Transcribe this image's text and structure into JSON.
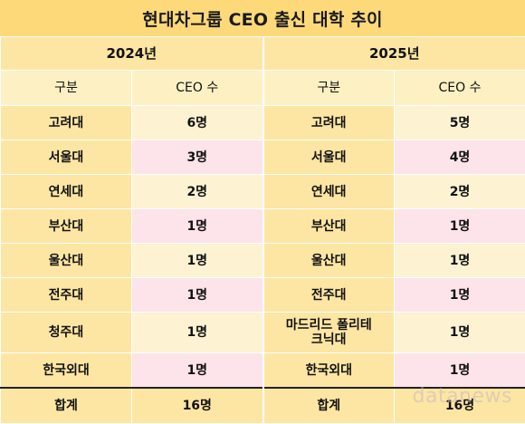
{
  "chart_data": {
    "type": "table",
    "title": "현대차그룹 CEO 출신 대학 추이",
    "years": [
      "2024년",
      "2025년"
    ],
    "columns": [
      "구분",
      "CEO 수"
    ],
    "rows_2024": [
      {
        "univ": "고려대",
        "count": "6명"
      },
      {
        "univ": "서울대",
        "count": "3명"
      },
      {
        "univ": "연세대",
        "count": "2명"
      },
      {
        "univ": "부산대",
        "count": "1명"
      },
      {
        "univ": "울산대",
        "count": "1명"
      },
      {
        "univ": "전주대",
        "count": "1명"
      },
      {
        "univ": "청주대",
        "count": "1명"
      },
      {
        "univ": "한국외대",
        "count": "1명"
      }
    ],
    "rows_2025": [
      {
        "univ": "고려대",
        "count": "5명"
      },
      {
        "univ": "서울대",
        "count": "4명"
      },
      {
        "univ": "연세대",
        "count": "2명"
      },
      {
        "univ": "부산대",
        "count": "1명"
      },
      {
        "univ": "울산대",
        "count": "1명"
      },
      {
        "univ": "전주대",
        "count": "1명"
      },
      {
        "univ": "마드리드 폴리테크닉대",
        "count": "1명"
      },
      {
        "univ": "한국외대",
        "count": "1명"
      }
    ],
    "total_label": "합계",
    "total_2024": "16명",
    "total_2025": "16명"
  },
  "watermark": "datanews",
  "colors": {
    "title_bg": "#fdd97a",
    "header_bg": "#fde6a3",
    "cream": "#fdf3d3",
    "pink": "#fde3ea"
  }
}
